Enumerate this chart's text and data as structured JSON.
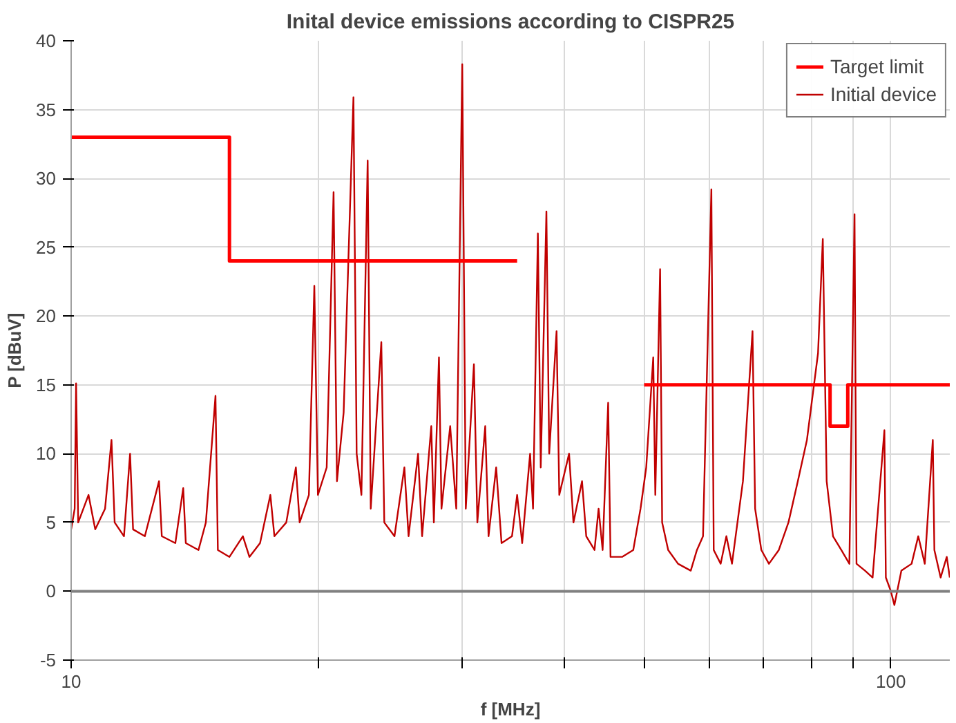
{
  "chart_data": {
    "type": "line",
    "title": "Inital device emissions according to CISPR25",
    "xlabel": "f [MHz]",
    "ylabel": "P [dBuV]",
    "log": "x",
    "xlim": [
      10,
      118
    ],
    "ylim": [
      -5,
      40
    ],
    "xticks": [
      10,
      {
        "value": 20,
        "label": null
      },
      {
        "value": 30,
        "label": null
      },
      {
        "value": 40,
        "label": null
      },
      {
        "value": 50,
        "label": null
      },
      {
        "value": 60,
        "label": null
      },
      {
        "value": 70,
        "label": null
      },
      {
        "value": 80,
        "label": null
      },
      {
        "value": 90,
        "label": null
      },
      100
    ],
    "yticks": [
      -5,
      0,
      5,
      10,
      15,
      20,
      25,
      30,
      35,
      40
    ],
    "grid": true,
    "legend": "top right",
    "line_style": "solid",
    "marker": "none",
    "ref_lines": [
      {
        "axis": "y",
        "value": 0,
        "label": null,
        "color": "#808080"
      }
    ],
    "series": [
      {
        "name": "Target limit",
        "color": "#ff0000",
        "x": [
          10,
          15.6,
          15.6,
          35,
          42,
          50,
          84.3,
          84.3,
          88.6,
          88.6,
          118
        ],
        "values": [
          33,
          33,
          24,
          24,
          null,
          15,
          15,
          12,
          12,
          15,
          15
        ]
      },
      {
        "name": "Initial device",
        "color": "#c00000",
        "x": [
          10.0,
          10.1,
          10.14,
          10.2,
          10.5,
          10.7,
          11,
          11.2,
          11.3,
          11.6,
          11.8,
          11.9,
          12.3,
          12.8,
          12.9,
          13.4,
          13.7,
          13.8,
          14.3,
          14.6,
          15.0,
          15.1,
          15.6,
          16.2,
          16.5,
          17,
          17.5,
          17.7,
          18.3,
          18.8,
          19,
          19.5,
          19.8,
          20,
          20.5,
          20.9,
          21.1,
          21.5,
          22.1,
          22.3,
          22.6,
          23.0,
          23.2,
          23.9,
          24.1,
          24.8,
          25.5,
          25.8,
          26.5,
          26.8,
          27.5,
          27.7,
          28.1,
          28.3,
          29,
          29.5,
          30.0,
          30.3,
          31.0,
          31.3,
          32,
          32.3,
          33,
          33.5,
          34.5,
          35,
          35.5,
          36.3,
          36.6,
          37.1,
          37.4,
          38.0,
          38.3,
          39.1,
          39.4,
          40.5,
          41,
          42,
          42.5,
          43.5,
          44,
          44.5,
          45.2,
          45.5,
          47,
          48.5,
          49.5,
          50.3,
          51.3,
          51.6,
          52.3,
          52.6,
          53.5,
          55,
          57,
          58,
          59,
          60.4,
          60.8,
          62,
          63,
          64,
          66,
          67.8,
          68.3,
          69.5,
          71,
          73,
          75,
          77,
          79,
          81.5,
          82.6,
          83.5,
          85,
          87,
          89,
          90.3,
          90.8,
          93,
          95,
          98.2,
          98.6,
          100,
          101,
          103,
          106,
          108,
          110,
          112.5,
          113,
          115,
          117,
          118
        ],
        "values": [
          4.5,
          6,
          15.1,
          5,
          7,
          4.5,
          6,
          11,
          5,
          4,
          10,
          4.5,
          4,
          8,
          4,
          3.5,
          7.5,
          3.5,
          3,
          5,
          14.2,
          3,
          2.5,
          4,
          2.5,
          3.5,
          7,
          4,
          5,
          9,
          5,
          7,
          22.2,
          7,
          9,
          29,
          8,
          13,
          35.9,
          10,
          7,
          31.3,
          6,
          18.1,
          5,
          4,
          9,
          4,
          10,
          4,
          12,
          5,
          17,
          6,
          12,
          6,
          38.3,
          6,
          16.5,
          5,
          12,
          4,
          9,
          3.5,
          4,
          7,
          3.5,
          10,
          6,
          26,
          9,
          27.6,
          10,
          18.9,
          7,
          10,
          5,
          8,
          4,
          3,
          6,
          3,
          13.7,
          2.5,
          2.5,
          3,
          6,
          9,
          17,
          7,
          23.4,
          5,
          3,
          2,
          1.5,
          3,
          4,
          29.2,
          3,
          2,
          4,
          2,
          8,
          18.9,
          6,
          3,
          2,
          3,
          5,
          8,
          11,
          17.3,
          25.6,
          8,
          4,
          3,
          2,
          27.4,
          2,
          1.5,
          1,
          11.7,
          1,
          0,
          -1,
          1.5,
          2,
          4,
          2,
          11,
          3,
          1,
          2.5,
          1
        ]
      }
    ]
  }
}
